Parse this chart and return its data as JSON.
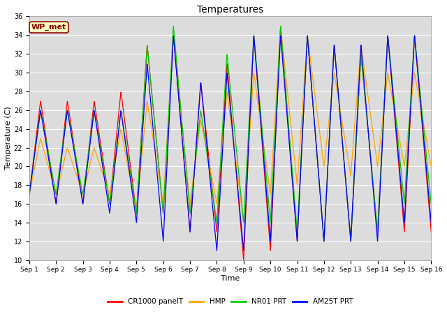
{
  "title": "Temperatures",
  "xlabel": "Time",
  "ylabel": "Temperature (C)",
  "ylim": [
    10,
    36
  ],
  "yticks": [
    10,
    12,
    14,
    16,
    18,
    20,
    22,
    24,
    26,
    28,
    30,
    32,
    34,
    36
  ],
  "annotation_text": "WP_met",
  "annotation_color": "#8B0000",
  "annotation_bg": "#FFFFC0",
  "annotation_border": "#8B0000",
  "series_colors": {
    "CR1000 panelT": "#FF0000",
    "HMP": "#FFA500",
    "NR01 PRT": "#00CC00",
    "AM25T PRT": "#0000FF"
  },
  "legend_labels": [
    "CR1000 panelT",
    "HMP",
    "NR01 PRT",
    "AM25T PRT"
  ],
  "background_color": "#DCDCDC",
  "grid_color": "#FFFFFF",
  "tick_labels": [
    "Sep 1",
    "Sep 2",
    "Sep 3",
    "Sep 4",
    "Sep 5",
    "Sep 6",
    "Sep 7",
    "Sep 8",
    "Sep 9",
    "Sep 10",
    "Sep 11",
    "Sep 12",
    "Sep 13",
    "Sep 14",
    "Sep 15",
    "Sep 16"
  ],
  "figsize": [
    6.4,
    4.8
  ],
  "dpi": 100
}
